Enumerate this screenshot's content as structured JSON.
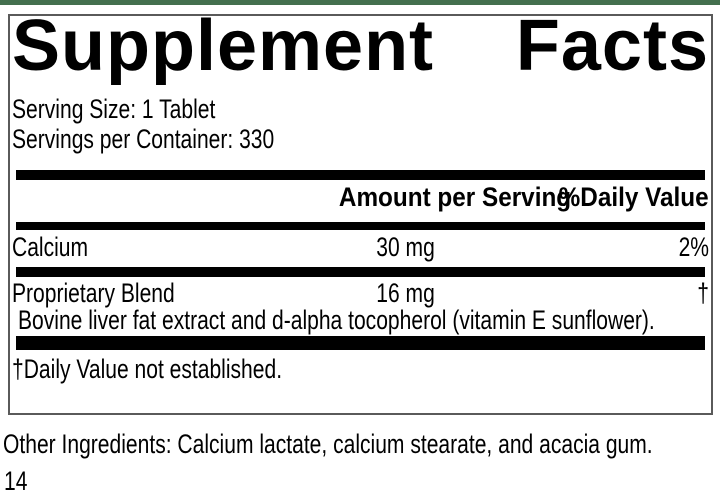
{
  "colors": {
    "accent_green": "#44704e",
    "box_border": "#5a5a5a",
    "bar_black": "#000000"
  },
  "label": {
    "title": "Supplement Facts",
    "serving_size": "Serving Size: 1 Tablet",
    "servings_per_container": "Servings per Container: 330",
    "columns": {
      "amount": "Amount per Serving",
      "daily_value": "%Daily Value"
    },
    "rows": [
      {
        "name": "Calcium",
        "amount": "30 mg",
        "daily_value": "2%"
      },
      {
        "name": "Proprietary Blend",
        "amount": "16 mg",
        "daily_value": "†",
        "description": "Bovine liver fat extract and d-alpha tocopherol (vitamin E sunflower)."
      }
    ],
    "footnote": "†Daily Value not established."
  },
  "other_ingredients": "Other Ingredients: Calcium lactate, calcium stearate, and acacia gum.",
  "page_number": "14"
}
